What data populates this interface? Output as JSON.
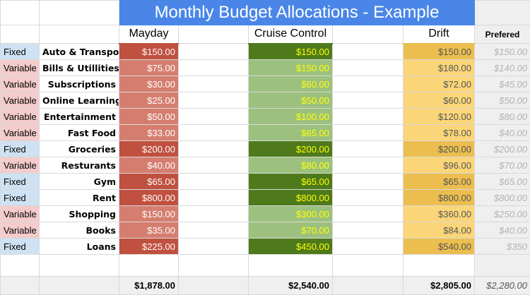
{
  "title": "Monthly Budget Allocations - Example",
  "headers": {
    "mayday": "Mayday",
    "cruise": "Cruise Control",
    "drift": "Drift",
    "preferred": "Prefered"
  },
  "colors": {
    "title_bg": "#4a86e8",
    "fixed_type": "#cfe2f3",
    "variable_type": "#f4cccc",
    "mayday_fixed": "#c0503f",
    "mayday_variable": "#d57e6f",
    "cruise_fixed": "#4e7a1c",
    "cruise_variable": "#9cc17f",
    "drift_fixed": "#ebbe4f",
    "drift_variable": "#fbd678"
  },
  "rows": [
    {
      "type": "Fixed",
      "category": "Auto & Transport",
      "mayday": "$150.00",
      "cruise": "$150.00",
      "drift": "$150.00",
      "preferred": "$150.00"
    },
    {
      "type": "Variable",
      "category": "Bills & Utillities",
      "mayday": "$75.00",
      "cruise": "$150.00",
      "drift": "$180.00",
      "preferred": "$140.00"
    },
    {
      "type": "Variable",
      "category": "Subscriptions",
      "mayday": "$30.00",
      "cruise": "$60.00",
      "drift": "$72.00",
      "preferred": "$45.00"
    },
    {
      "type": "Variable",
      "category": "Online Learning",
      "mayday": "$25.00",
      "cruise": "$50.00",
      "drift": "$60.00",
      "preferred": "$50.00"
    },
    {
      "type": "Variable",
      "category": "Entertainment",
      "mayday": "$50.00",
      "cruise": "$100.00",
      "drift": "$120.00",
      "preferred": "$80.00"
    },
    {
      "type": "Variable",
      "category": "Fast Food",
      "mayday": "$33.00",
      "cruise": "$65.00",
      "drift": "$78.00",
      "preferred": "$40.00"
    },
    {
      "type": "Fixed",
      "category": "Groceries",
      "mayday": "$200.00",
      "cruise": "$200.00",
      "drift": "$200.00",
      "preferred": "$200.00"
    },
    {
      "type": "Variable",
      "category": "Resturants",
      "mayday": "$40.00",
      "cruise": "$80.00",
      "drift": "$96.00",
      "preferred": "$70.00"
    },
    {
      "type": "Fixed",
      "category": "Gym",
      "mayday": "$65.00",
      "cruise": "$65.00",
      "drift": "$65.00",
      "preferred": "$65.00"
    },
    {
      "type": "Fixed",
      "category": "Rent",
      "mayday": "$800.00",
      "cruise": "$800.00",
      "drift": "$800.00",
      "preferred": "$800.00"
    },
    {
      "type": "Variable",
      "category": "Shopping",
      "mayday": "$150.00",
      "cruise": "$300.00",
      "drift": "$360.00",
      "preferred": "$250.00"
    },
    {
      "type": "Variable",
      "category": "Books",
      "mayday": "$35.00",
      "cruise": "$70.00",
      "drift": "$84.00",
      "preferred": "$40.00"
    },
    {
      "type": "Fixed",
      "category": "Loans",
      "mayday": "$225.00",
      "cruise": "$450.00",
      "drift": "$540.00",
      "preferred": "$350"
    }
  ],
  "totals": {
    "mayday": "$1,878.00",
    "cruise": "$2,540.00",
    "drift": "$2,805.00",
    "preferred": "$2,280.00"
  }
}
